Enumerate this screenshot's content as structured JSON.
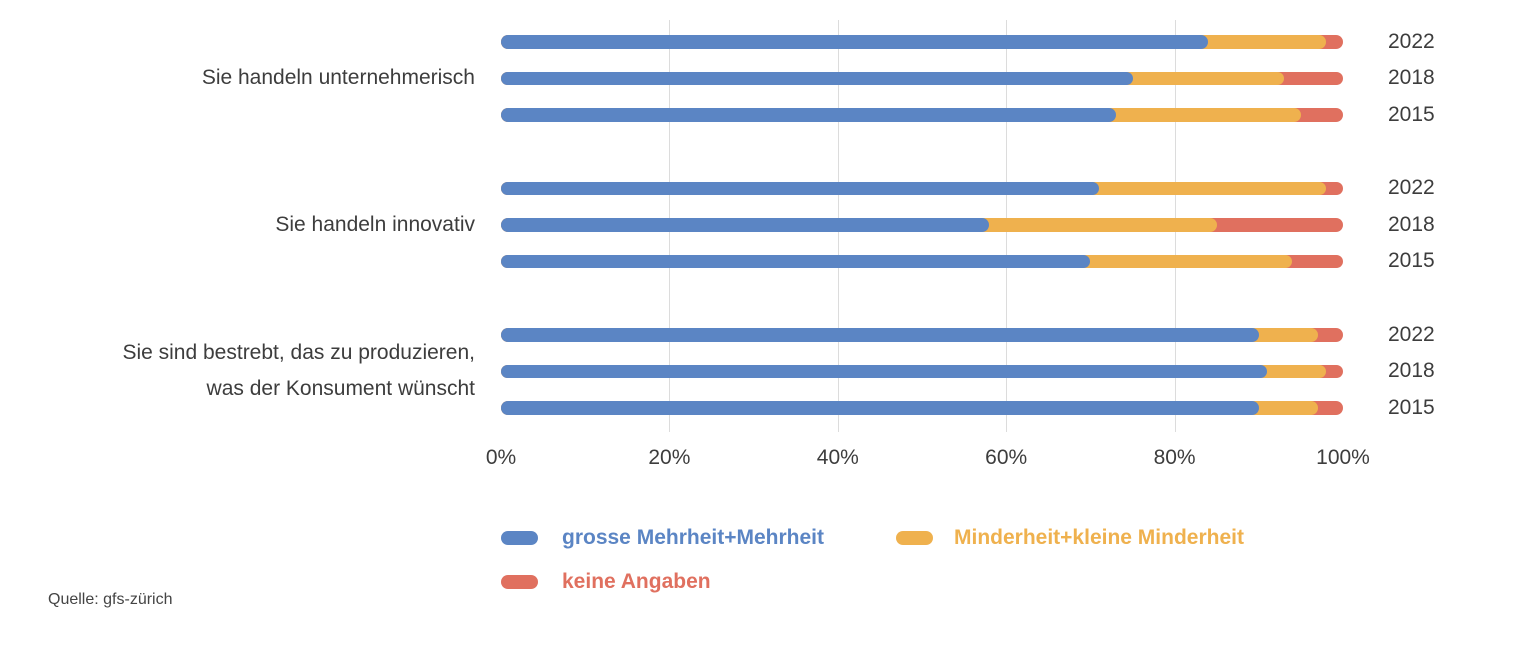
{
  "chart_data": {
    "type": "bar",
    "orientation": "horizontal",
    "stacked": true,
    "unit": "percent",
    "xlim": [
      0,
      100
    ],
    "x_tick_labels": [
      "0%",
      "20%",
      "40%",
      "60%",
      "80%",
      "100%"
    ],
    "x_tick_values": [
      0,
      20,
      40,
      60,
      80,
      100
    ],
    "gridline_values": [
      20,
      40,
      60,
      80
    ],
    "grid": true,
    "legend_position": "bottom",
    "series_names": [
      "grosse Mehrheit+Mehrheit",
      "Minderheit+kleine Minderheit",
      "keine Angaben"
    ],
    "groups": [
      {
        "label": "Sie handeln unternehmerisch",
        "label_lines": [
          "Sie handeln unternehmerisch"
        ],
        "rows": [
          {
            "year": "2022",
            "values": [
              84,
              14,
              2
            ]
          },
          {
            "year": "2018",
            "values": [
              75,
              18,
              7
            ]
          },
          {
            "year": "2015",
            "values": [
              73,
              22,
              5
            ]
          }
        ]
      },
      {
        "label": "Sie handeln innovativ",
        "label_lines": [
          "Sie handeln innovativ"
        ],
        "rows": [
          {
            "year": "2022",
            "values": [
              71,
              27,
              2
            ]
          },
          {
            "year": "2018",
            "values": [
              58,
              27,
              15
            ]
          },
          {
            "year": "2015",
            "values": [
              70,
              24,
              6
            ]
          }
        ]
      },
      {
        "label": "Sie sind bestrebt, das zu produzieren, was der Konsument wünscht",
        "label_lines": [
          "Sie sind bestrebt, das zu produzieren,",
          "was der Konsument wünscht"
        ],
        "rows": [
          {
            "year": "2022",
            "values": [
              90,
              7,
              3
            ]
          },
          {
            "year": "2018",
            "values": [
              91,
              7,
              2
            ]
          },
          {
            "year": "2015",
            "values": [
              90,
              7,
              3
            ]
          }
        ]
      }
    ]
  },
  "colors": {
    "series": [
      "#5b85c4",
      "#efb14e",
      "#e0705f"
    ],
    "gridline": "#dcdcdc",
    "text": "#3d3d3d"
  },
  "legend": {
    "items": [
      {
        "label": "grosse Mehrheit+Mehrheit",
        "color_index": 0
      },
      {
        "label": "Minderheit+kleine Minderheit",
        "color_index": 1
      },
      {
        "label": "keine Angaben",
        "color_index": 2
      }
    ]
  },
  "source": "Quelle: gfs-zürich"
}
